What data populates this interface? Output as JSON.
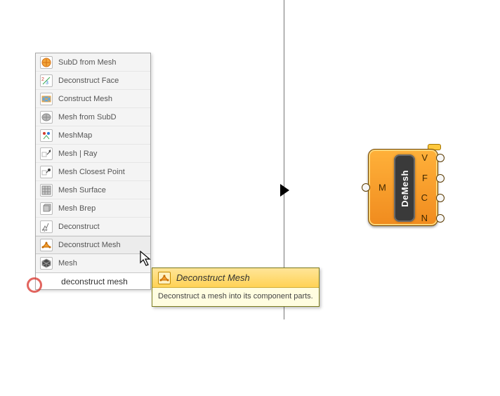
{
  "divider": {
    "arrow_color": "#000000"
  },
  "popup": {
    "items": [
      {
        "label": "SubD from Mesh",
        "icon": "subd-from-mesh-icon",
        "colors": [
          "#f2a63c",
          "#d46f10"
        ]
      },
      {
        "label": "Deconstruct Face",
        "icon": "deconstruct-face-icon",
        "colors": [
          "#d23c2e",
          "#2b7bd6",
          "#3aaa4e"
        ]
      },
      {
        "label": "Construct Mesh",
        "icon": "construct-mesh-icon",
        "colors": [
          "#f2a63c",
          "#5aa7e8"
        ]
      },
      {
        "label": "Mesh from SubD",
        "icon": "mesh-from-subd-icon",
        "colors": [
          "#b8b8b8",
          "#8a8a8a"
        ]
      },
      {
        "label": "MeshMap",
        "icon": "meshmap-icon",
        "colors": [
          "#d23c2e",
          "#2b7bd6",
          "#3aaa4e"
        ]
      },
      {
        "label": "Mesh | Ray",
        "icon": "mesh-ray-icon",
        "colors": [
          "#b8b8b8",
          "#444444"
        ]
      },
      {
        "label": "Mesh Closest Point",
        "icon": "mesh-closest-icon",
        "colors": [
          "#b8b8b8",
          "#444444"
        ]
      },
      {
        "label": "Mesh Surface",
        "icon": "mesh-surface-icon",
        "colors": [
          "#c9c9c9",
          "#8a8a8a"
        ]
      },
      {
        "label": "Mesh Brep",
        "icon": "mesh-brep-icon",
        "colors": [
          "#c9c9c9",
          "#8a8a8a"
        ]
      },
      {
        "label": "Deconstruct",
        "icon": "deconstruct-icon",
        "colors": [
          "#7a7a7a",
          "#333333"
        ]
      },
      {
        "label": "Deconstruct Mesh",
        "icon": "deconstruct-mesh-icon",
        "colors": [
          "#f29b2c",
          "#c46a00"
        ]
      },
      {
        "label": "Mesh",
        "icon": "mesh-icon",
        "colors": [
          "#4a4a4a",
          "#9a9a9a"
        ]
      }
    ],
    "hover_index": 10,
    "search_value": "deconstruct mesh"
  },
  "tooltip": {
    "title": "Deconstruct Mesh",
    "icon": "deconstruct-mesh-icon",
    "icon_colors": [
      "#f29b2c",
      "#c46a00"
    ],
    "description": "Deconstruct a mesh into its component parts."
  },
  "node": {
    "name": "DeMesh",
    "core_bg": "#3a3a3a",
    "core_fg": "#ffffff",
    "body_colors": [
      "#ffb13a",
      "#f08b1e"
    ],
    "input": {
      "label": "M"
    },
    "outputs": [
      {
        "label": "V"
      },
      {
        "label": "F"
      },
      {
        "label": "C"
      },
      {
        "label": "N"
      }
    ]
  },
  "ring_color": "#d8322a"
}
